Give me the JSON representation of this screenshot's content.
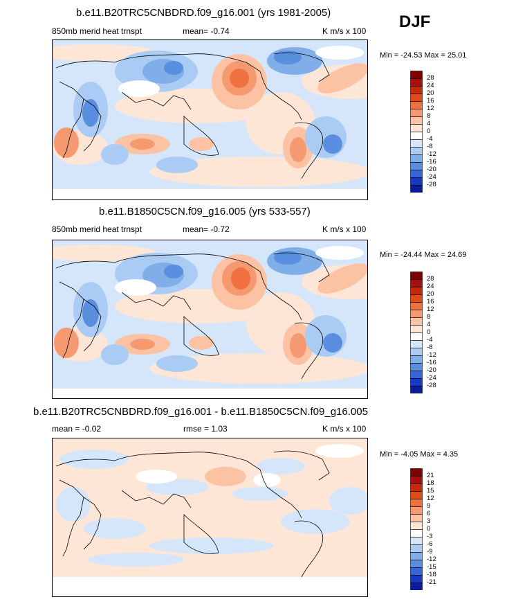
{
  "season_label": "DJF",
  "panels": [
    {
      "title": "b.e11.B20TRC5CNBDRD.f09_g16.001 (yrs 1981-2005)",
      "left_label": "850mb merid heat trnspt",
      "center_label": "mean=  -0.74",
      "right_label": "K m/s x 100",
      "minmax": "Min = -24.53 Max =  25.01",
      "colorbar_levels": [
        "28",
        "24",
        "20",
        "16",
        "12",
        "8",
        "4",
        "0",
        "-4",
        "-8",
        "-12",
        "-16",
        "-20",
        "-24",
        "-28"
      ],
      "colorbar_colors": [
        "#7f0000",
        "#a50f0f",
        "#c8280a",
        "#e04b1a",
        "#f07040",
        "#f59a70",
        "#fbc2a3",
        "#fde6d6",
        "#ffffff",
        "#d6e6fa",
        "#aacbf3",
        "#80aee9",
        "#5a8fe0",
        "#3565d6",
        "#1538c6",
        "#0a1c98"
      ]
    },
    {
      "title": "b.e11.B1850C5CN.f09_g16.005 (yrs 533-557)",
      "left_label": "850mb merid heat trnspt",
      "center_label": "mean=  -0.72",
      "right_label": "K m/s x 100",
      "minmax": "Min = -24.44 Max =  24.69",
      "colorbar_levels": [
        "28",
        "24",
        "20",
        "16",
        "12",
        "8",
        "4",
        "0",
        "-4",
        "-8",
        "-12",
        "-16",
        "-20",
        "-24",
        "-28"
      ],
      "colorbar_colors": [
        "#7f0000",
        "#a50f0f",
        "#c8280a",
        "#e04b1a",
        "#f07040",
        "#f59a70",
        "#fbc2a3",
        "#fde6d6",
        "#ffffff",
        "#d6e6fa",
        "#aacbf3",
        "#80aee9",
        "#5a8fe0",
        "#3565d6",
        "#1538c6",
        "#0a1c98"
      ]
    },
    {
      "title": "b.e11.B20TRC5CNBDRD.f09_g16.001 - b.e11.B1850C5CN.f09_g16.005",
      "left_label": "mean =  -0.02",
      "center_label": "rmse =   1.03",
      "right_label": "K m/s x 100",
      "minmax": "Min =  -4.05 Max =   4.35",
      "colorbar_levels": [
        "21",
        "18",
        "15",
        "12",
        "9",
        "6",
        "3",
        "0",
        "-3",
        "-6",
        "-9",
        "-12",
        "-15",
        "-18",
        "-21"
      ],
      "colorbar_colors": [
        "#7f0000",
        "#a50f0f",
        "#c8280a",
        "#e04b1a",
        "#f07040",
        "#f59a70",
        "#fbc2a3",
        "#fde6d6",
        "#ffffff",
        "#d6e6fa",
        "#aacbf3",
        "#80aee9",
        "#5a8fe0",
        "#3565d6",
        "#1538c6",
        "#0a1c98"
      ]
    }
  ]
}
